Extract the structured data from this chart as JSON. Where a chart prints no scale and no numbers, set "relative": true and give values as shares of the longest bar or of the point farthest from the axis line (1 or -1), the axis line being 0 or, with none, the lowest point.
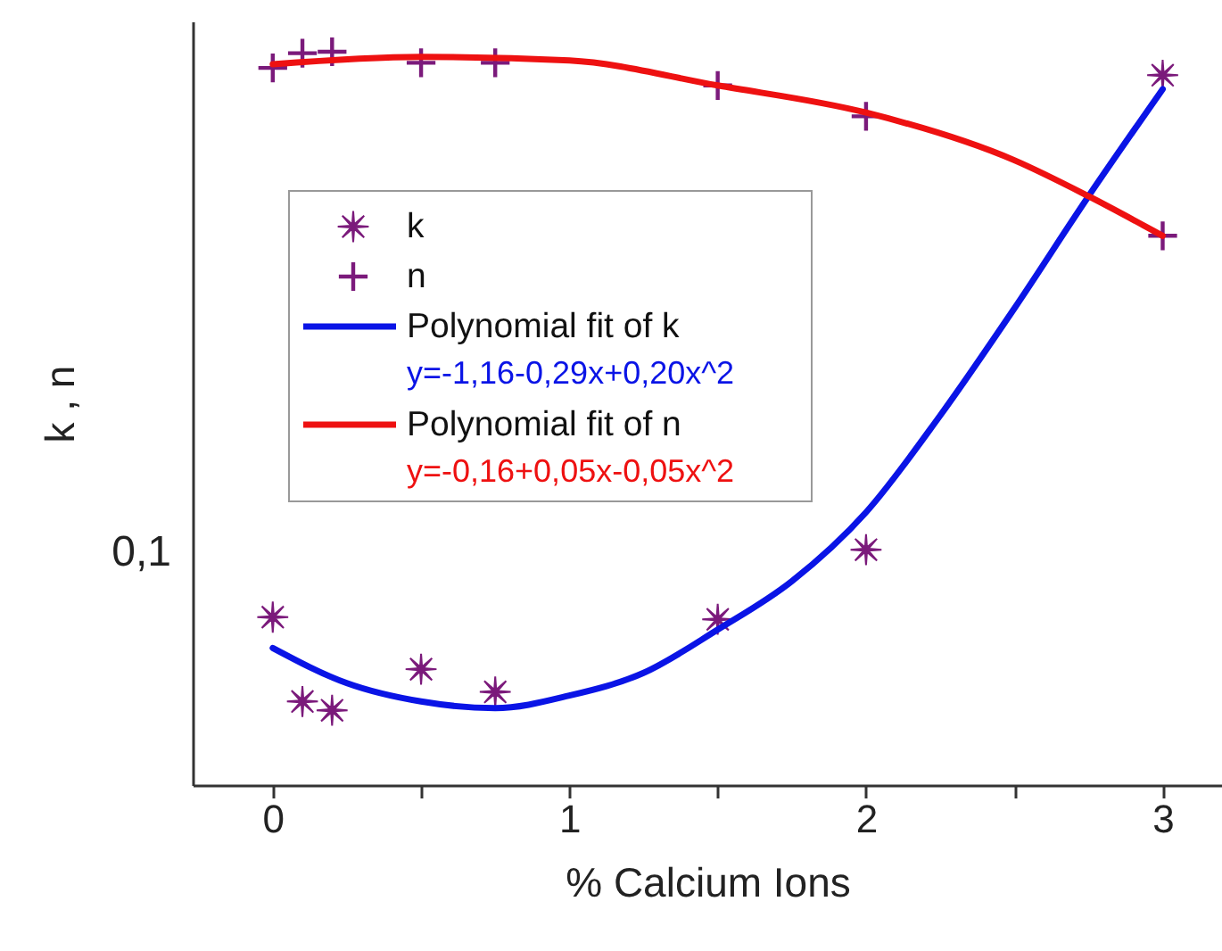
{
  "chart_data": {
    "type": "scatter",
    "relative": true,
    "xlabel": "% Calcium Ions",
    "ylabel": "k , n",
    "grid": false,
    "legend": "top left",
    "xlim": [
      -0.27,
      3.2
    ],
    "xticks": [
      0,
      {
        "value": 0.5,
        "label": null
      },
      1,
      {
        "value": 1.5,
        "label": null
      },
      2,
      {
        "value": 2.5,
        "label": null
      },
      3
    ],
    "annotations": [
      "y=-1,16-0,29x+0,20x^2",
      "y=-0,16+0,05x-0,05x^2",
      "0,1"
    ],
    "series": [
      {
        "name": "k",
        "marker": "star",
        "color": "#7b1a7b",
        "x": [
          0,
          0.1,
          0.2,
          0.5,
          0.75,
          1.5,
          2,
          3
        ],
        "values": [
          0.229,
          0.114,
          0.102,
          0.158,
          0.127,
          0.226,
          0.321,
          0.968
        ]
      },
      {
        "name": "n",
        "marker": "cross",
        "color": "#7b1a7b",
        "x": [
          0,
          0.1,
          0.2,
          0.5,
          0.75,
          1.5,
          2,
          3
        ],
        "values": [
          0.978,
          0.998,
          1,
          0.985,
          0.985,
          0.954,
          0.912,
          0.749
        ]
      },
      {
        "name": "Polynomial fit of k",
        "type": "line",
        "color": "#0a14e6",
        "x": [
          0,
          0.25,
          0.5,
          0.75,
          1,
          1.25,
          1.5,
          1.75,
          2,
          2.25,
          2.5,
          2.75,
          3
        ],
        "values": [
          0.187,
          0.139,
          0.114,
          0.105,
          0.122,
          0.153,
          0.212,
          0.278,
          0.372,
          0.504,
          0.65,
          0.803,
          0.949
        ]
      },
      {
        "name": "Polynomial fit of n",
        "type": "line",
        "color": "#ee1111",
        "x": [
          0,
          0.5,
          1,
          1.5,
          2,
          2.5,
          2.75,
          3
        ],
        "values": [
          0.983,
          0.993,
          0.988,
          0.954,
          0.917,
          0.852,
          0.803,
          0.749
        ]
      }
    ]
  }
}
